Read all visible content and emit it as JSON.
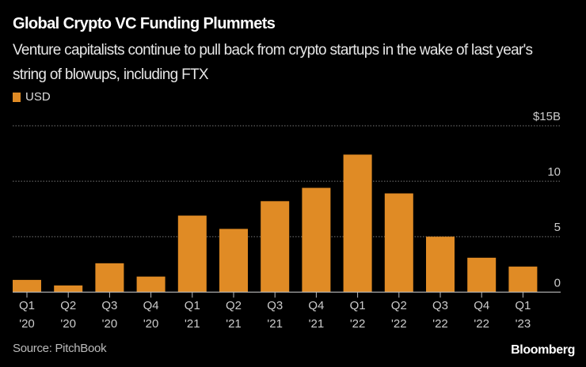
{
  "chart_data": {
    "type": "bar",
    "title": "Global Crypto VC Funding Plummets",
    "subtitle": "Venture capitalists continue to pull back from crypto startups in the wake of last year's string of blowups, including FTX",
    "categories": [
      {
        "q": "Q1",
        "y": "'20"
      },
      {
        "q": "Q2",
        "y": "'20"
      },
      {
        "q": "Q3",
        "y": "'20"
      },
      {
        "q": "Q4",
        "y": "'20"
      },
      {
        "q": "Q1",
        "y": "'21"
      },
      {
        "q": "Q2",
        "y": "'21"
      },
      {
        "q": "Q3",
        "y": "'21"
      },
      {
        "q": "Q4",
        "y": "'21"
      },
      {
        "q": "Q1",
        "y": "'22"
      },
      {
        "q": "Q2",
        "y": "'22"
      },
      {
        "q": "Q3",
        "y": "'22"
      },
      {
        "q": "Q4",
        "y": "'22"
      },
      {
        "q": "Q1",
        "y": "'23"
      }
    ],
    "series": [
      {
        "name": "USD",
        "values": [
          1.1,
          0.6,
          2.6,
          1.4,
          6.9,
          5.7,
          8.2,
          9.4,
          12.4,
          8.9,
          5.0,
          3.1,
          2.3
        ]
      }
    ],
    "ylim": [
      0,
      15
    ],
    "yticks": [
      {
        "value": 0,
        "label": "0"
      },
      {
        "value": 5,
        "label": "5"
      },
      {
        "value": 10,
        "label": "10"
      },
      {
        "value": 15,
        "label": "$15B"
      }
    ],
    "grid": true,
    "legend": "top-left",
    "bar_color": "#e08b25",
    "source": "Source: PitchBook",
    "brand": "Bloomberg"
  }
}
